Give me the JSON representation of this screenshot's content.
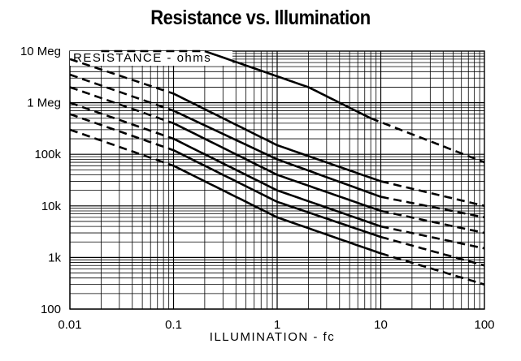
{
  "chart_data": {
    "type": "line",
    "title": "Resistance vs. Illumination",
    "xlabel": "ILLUMINATION - fc",
    "ylabel": "RESISTANCE - ohms",
    "xscale": "log",
    "yscale": "log",
    "xlim": [
      0.01,
      100
    ],
    "ylim": [
      100,
      10000000
    ],
    "grid": true,
    "x_ticks": [
      "0.01",
      "0.1",
      "1",
      "10",
      "100"
    ],
    "y_ticks": [
      "100",
      "1k",
      "10k",
      "100k",
      "1 Meg",
      "10 Meg"
    ],
    "line_style_note": "dashed where extrapolated, solid in measured range",
    "series": [
      {
        "x": [
          0.02,
          0.2,
          2,
          8,
          100
        ],
        "y": [
          10000000,
          10000000,
          2000000,
          500000,
          70000
        ],
        "solid_x_range": [
          0.2,
          8
        ]
      },
      {
        "x": [
          0.01,
          0.1,
          1,
          10,
          100
        ],
        "y": [
          7000000,
          1500000,
          150000,
          30000,
          10000
        ],
        "solid_x_range": [
          0.1,
          10
        ]
      },
      {
        "x": [
          0.01,
          0.1,
          1,
          10,
          100
        ],
        "y": [
          3500000,
          700000,
          80000,
          15000,
          6000
        ],
        "solid_x_range": [
          0.1,
          10
        ]
      },
      {
        "x": [
          0.01,
          0.1,
          1,
          10,
          100
        ],
        "y": [
          2000000,
          400000,
          40000,
          8000,
          3000
        ],
        "solid_x_range": [
          0.1,
          10
        ]
      },
      {
        "x": [
          0.01,
          0.1,
          1,
          10,
          100
        ],
        "y": [
          1000000,
          200000,
          20000,
          4000,
          1500
        ],
        "solid_x_range": [
          0.1,
          10
        ]
      },
      {
        "x": [
          0.01,
          0.1,
          1,
          10,
          100
        ],
        "y": [
          600000,
          120000,
          12000,
          2500,
          700
        ],
        "solid_x_range": [
          0.1,
          10
        ]
      },
      {
        "x": [
          0.01,
          0.1,
          1,
          10,
          100
        ],
        "y": [
          300000,
          60000,
          6000,
          1200,
          300
        ],
        "solid_x_range": [
          0.1,
          10
        ]
      }
    ]
  }
}
